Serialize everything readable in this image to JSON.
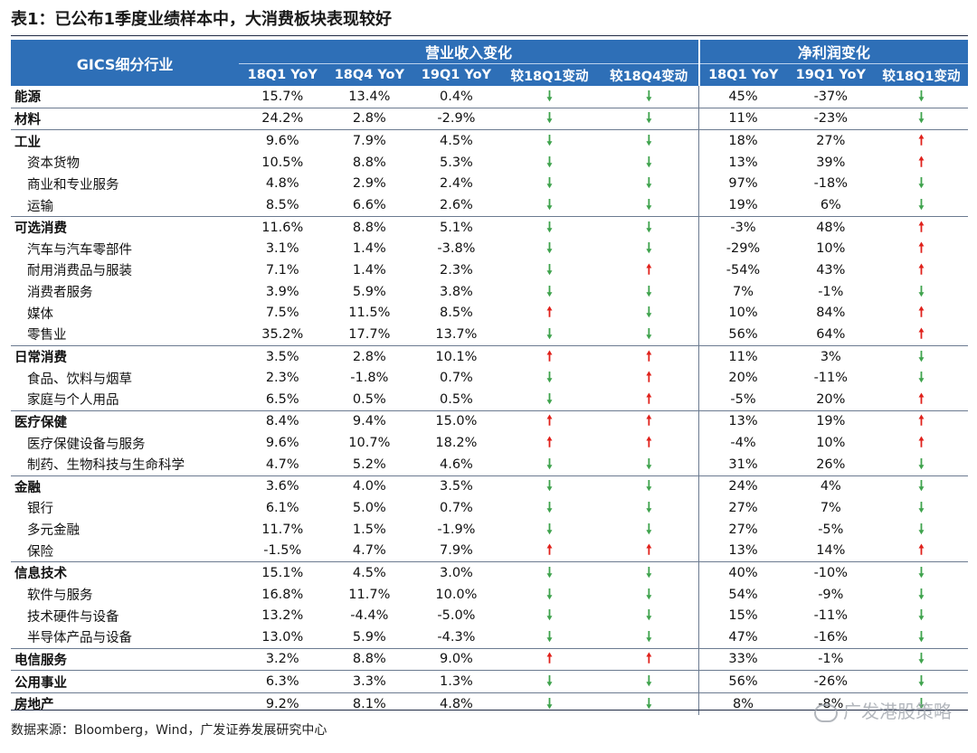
{
  "title": "表1：已公布1季度业绩样本中，大消费板块表现较好",
  "header": {
    "name_col": "GICS细分行业",
    "revenue_group": "营业收入变化",
    "profit_group": "净利润变化",
    "rev_cols": [
      "18Q1 YoY",
      "18Q4 YoY",
      "19Q1 YoY",
      "较18Q1变动",
      "较18Q4变动"
    ],
    "np_cols": [
      "18Q1 YoY",
      "19Q1 YoY",
      "较18Q1变动"
    ]
  },
  "rows": [
    {
      "name": "能源",
      "level": "top",
      "rev": [
        "15.7%",
        "13.4%",
        "0.4%"
      ],
      "rev_arrows": [
        "down",
        "down"
      ],
      "np": [
        "45%",
        "-37%"
      ],
      "np_arrow": "down"
    },
    {
      "name": "材料",
      "level": "top",
      "rev": [
        "24.2%",
        "2.8%",
        "-2.9%"
      ],
      "rev_arrows": [
        "down",
        "down"
      ],
      "np": [
        "11%",
        "-23%"
      ],
      "np_arrow": "down"
    },
    {
      "name": "工业",
      "level": "top",
      "rev": [
        "9.6%",
        "7.9%",
        "4.5%"
      ],
      "rev_arrows": [
        "down",
        "down"
      ],
      "np": [
        "18%",
        "27%"
      ],
      "np_arrow": "up"
    },
    {
      "name": "资本货物",
      "level": "sub",
      "rev": [
        "10.5%",
        "8.8%",
        "5.3%"
      ],
      "rev_arrows": [
        "down",
        "down"
      ],
      "np": [
        "13%",
        "39%"
      ],
      "np_arrow": "up"
    },
    {
      "name": "商业和专业服务",
      "level": "sub",
      "rev": [
        "4.8%",
        "2.9%",
        "2.4%"
      ],
      "rev_arrows": [
        "down",
        "down"
      ],
      "np": [
        "97%",
        "-18%"
      ],
      "np_arrow": "down"
    },
    {
      "name": "运输",
      "level": "sub",
      "rev": [
        "8.5%",
        "6.6%",
        "2.6%"
      ],
      "rev_arrows": [
        "down",
        "down"
      ],
      "np": [
        "19%",
        "6%"
      ],
      "np_arrow": "down"
    },
    {
      "name": "可选消费",
      "level": "top",
      "rev": [
        "11.6%",
        "8.8%",
        "5.1%"
      ],
      "rev_arrows": [
        "down",
        "down"
      ],
      "np": [
        "-3%",
        "48%"
      ],
      "np_arrow": "up"
    },
    {
      "name": "汽车与汽车零部件",
      "level": "sub",
      "rev": [
        "3.1%",
        "1.4%",
        "-3.8%"
      ],
      "rev_arrows": [
        "down",
        "down"
      ],
      "np": [
        "-29%",
        "10%"
      ],
      "np_arrow": "up"
    },
    {
      "name": "耐用消费品与服装",
      "level": "sub",
      "rev": [
        "7.1%",
        "1.4%",
        "2.3%"
      ],
      "rev_arrows": [
        "down",
        "up"
      ],
      "np": [
        "-54%",
        "43%"
      ],
      "np_arrow": "up"
    },
    {
      "name": "消费者服务",
      "level": "sub",
      "rev": [
        "3.9%",
        "5.9%",
        "3.8%"
      ],
      "rev_arrows": [
        "down",
        "down"
      ],
      "np": [
        "7%",
        "-1%"
      ],
      "np_arrow": "down"
    },
    {
      "name": "媒体",
      "level": "sub",
      "rev": [
        "7.5%",
        "11.5%",
        "8.5%"
      ],
      "rev_arrows": [
        "up",
        "down"
      ],
      "np": [
        "10%",
        "84%"
      ],
      "np_arrow": "up"
    },
    {
      "name": "零售业",
      "level": "sub",
      "rev": [
        "35.2%",
        "17.7%",
        "13.7%"
      ],
      "rev_arrows": [
        "down",
        "down"
      ],
      "np": [
        "56%",
        "64%"
      ],
      "np_arrow": "up"
    },
    {
      "name": "日常消费",
      "level": "top",
      "rev": [
        "3.5%",
        "2.8%",
        "10.1%"
      ],
      "rev_arrows": [
        "up",
        "up"
      ],
      "np": [
        "11%",
        "3%"
      ],
      "np_arrow": "down"
    },
    {
      "name": "食品、饮料与烟草",
      "level": "sub",
      "rev": [
        "2.3%",
        "-1.8%",
        "0.7%"
      ],
      "rev_arrows": [
        "down",
        "up"
      ],
      "np": [
        "20%",
        "-11%"
      ],
      "np_arrow": "down"
    },
    {
      "name": "家庭与个人用品",
      "level": "sub",
      "rev": [
        "6.5%",
        "0.5%",
        "0.5%"
      ],
      "rev_arrows": [
        "down",
        "up"
      ],
      "np": [
        "-5%",
        "20%"
      ],
      "np_arrow": "up"
    },
    {
      "name": "医疗保健",
      "level": "top",
      "rev": [
        "8.4%",
        "9.4%",
        "15.0%"
      ],
      "rev_arrows": [
        "up",
        "up"
      ],
      "np": [
        "13%",
        "19%"
      ],
      "np_arrow": "up"
    },
    {
      "name": "医疗保健设备与服务",
      "level": "sub",
      "rev": [
        "9.6%",
        "10.7%",
        "18.2%"
      ],
      "rev_arrows": [
        "up",
        "up"
      ],
      "np": [
        "-4%",
        "10%"
      ],
      "np_arrow": "up"
    },
    {
      "name": "制药、生物科技与生命科学",
      "level": "sub",
      "rev": [
        "4.7%",
        "5.2%",
        "4.6%"
      ],
      "rev_arrows": [
        "down",
        "down"
      ],
      "np": [
        "31%",
        "26%"
      ],
      "np_arrow": "down"
    },
    {
      "name": "金融",
      "level": "top",
      "rev": [
        "3.6%",
        "4.0%",
        "3.5%"
      ],
      "rev_arrows": [
        "down",
        "down"
      ],
      "np": [
        "24%",
        "4%"
      ],
      "np_arrow": "down"
    },
    {
      "name": "银行",
      "level": "sub",
      "rev": [
        "6.1%",
        "5.0%",
        "0.7%"
      ],
      "rev_arrows": [
        "down",
        "down"
      ],
      "np": [
        "27%",
        "7%"
      ],
      "np_arrow": "down"
    },
    {
      "name": "多元金融",
      "level": "sub",
      "rev": [
        "11.7%",
        "1.5%",
        "-1.9%"
      ],
      "rev_arrows": [
        "down",
        "down"
      ],
      "np": [
        "27%",
        "-5%"
      ],
      "np_arrow": "down"
    },
    {
      "name": "保险",
      "level": "sub",
      "rev": [
        "-1.5%",
        "4.7%",
        "7.9%"
      ],
      "rev_arrows": [
        "up",
        "up"
      ],
      "np": [
        "13%",
        "14%"
      ],
      "np_arrow": "up"
    },
    {
      "name": "信息技术",
      "level": "top",
      "rev": [
        "15.1%",
        "4.5%",
        "3.0%"
      ],
      "rev_arrows": [
        "down",
        "down"
      ],
      "np": [
        "40%",
        "-10%"
      ],
      "np_arrow": "down"
    },
    {
      "name": "软件与服务",
      "level": "sub",
      "rev": [
        "16.8%",
        "11.7%",
        "10.0%"
      ],
      "rev_arrows": [
        "down",
        "down"
      ],
      "np": [
        "54%",
        "-9%"
      ],
      "np_arrow": "down"
    },
    {
      "name": "技术硬件与设备",
      "level": "sub",
      "rev": [
        "13.2%",
        "-4.4%",
        "-5.0%"
      ],
      "rev_arrows": [
        "down",
        "down"
      ],
      "np": [
        "15%",
        "-11%"
      ],
      "np_arrow": "down"
    },
    {
      "name": "半导体产品与设备",
      "level": "sub",
      "rev": [
        "13.0%",
        "5.9%",
        "-4.3%"
      ],
      "rev_arrows": [
        "down",
        "down"
      ],
      "np": [
        "47%",
        "-16%"
      ],
      "np_arrow": "down"
    },
    {
      "name": "电信服务",
      "level": "top",
      "rev": [
        "3.2%",
        "8.8%",
        "9.0%"
      ],
      "rev_arrows": [
        "up",
        "up"
      ],
      "np": [
        "33%",
        "-1%"
      ],
      "np_arrow": "down"
    },
    {
      "name": "公用事业",
      "level": "top",
      "rev": [
        "6.3%",
        "3.3%",
        "1.3%"
      ],
      "rev_arrows": [
        "down",
        "down"
      ],
      "np": [
        "56%",
        "-26%"
      ],
      "np_arrow": "down"
    },
    {
      "name": "房地产",
      "level": "top",
      "rev": [
        "9.2%",
        "8.1%",
        "4.8%"
      ],
      "rev_arrows": [
        "down",
        "down"
      ],
      "np": [
        "8%",
        "-8%"
      ],
      "np_arrow": "down"
    }
  ],
  "source": "数据来源：Bloomberg，Wind，广发证券发展研究中心",
  "watermark": "广发港股策略",
  "arrow_glyphs": {
    "up": "🠕",
    "down": "🠗"
  },
  "colors": {
    "header_bg": "#2e6fb7",
    "arrow_up": "#e0211b",
    "arrow_down": "#3fa34d"
  }
}
